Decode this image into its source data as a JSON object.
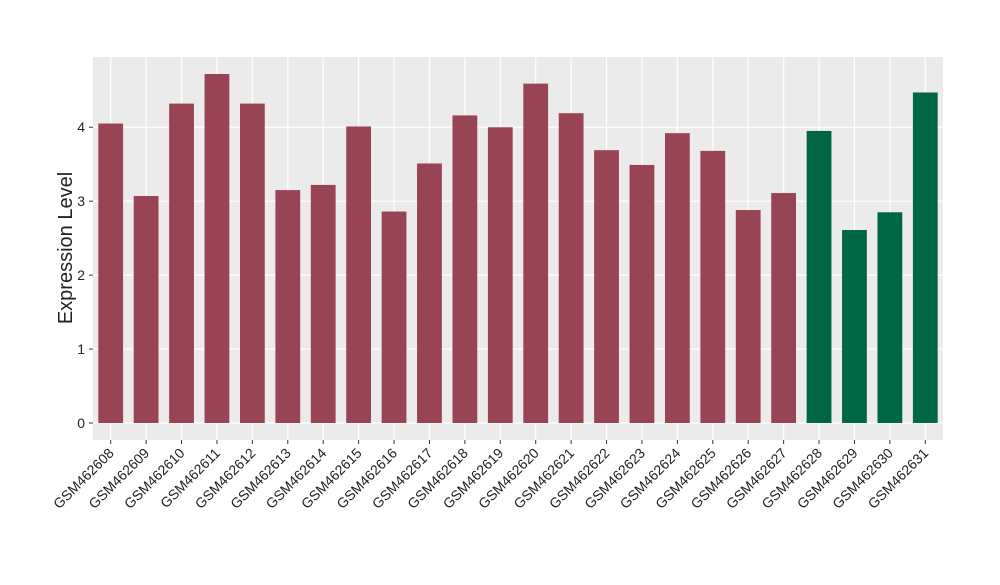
{
  "chart_data": {
    "type": "bar",
    "y_label": "Expression Level",
    "categories": [
      "GSM462608",
      "GSM462609",
      "GSM462610",
      "GSM462611",
      "GSM462612",
      "GSM462613",
      "GSM462614",
      "GSM462615",
      "GSM462616",
      "GSM462617",
      "GSM462618",
      "GSM462619",
      "GSM462620",
      "GSM462621",
      "GSM462622",
      "GSM462623",
      "GSM462624",
      "GSM462625",
      "GSM462626",
      "GSM462627",
      "GSM462628",
      "GSM462629",
      "GSM462630",
      "GSM462631"
    ],
    "values": [
      4.05,
      3.07,
      4.32,
      4.72,
      4.32,
      3.15,
      3.22,
      4.01,
      2.86,
      3.51,
      4.16,
      4.0,
      4.59,
      4.19,
      3.69,
      3.49,
      3.92,
      3.68,
      2.88,
      3.11,
      3.95,
      2.61,
      2.85,
      4.47
    ],
    "colors": [
      "#994455",
      "#994455",
      "#994455",
      "#994455",
      "#994455",
      "#994455",
      "#994455",
      "#994455",
      "#994455",
      "#994455",
      "#994455",
      "#994455",
      "#994455",
      "#994455",
      "#994455",
      "#994455",
      "#994455",
      "#994455",
      "#994455",
      "#994455",
      "#006644",
      "#006644",
      "#006644",
      "#006644"
    ],
    "ylim": [
      -0.23,
      4.95
    ],
    "yticks": [
      0,
      1,
      2,
      3,
      4
    ],
    "grid": true
  }
}
